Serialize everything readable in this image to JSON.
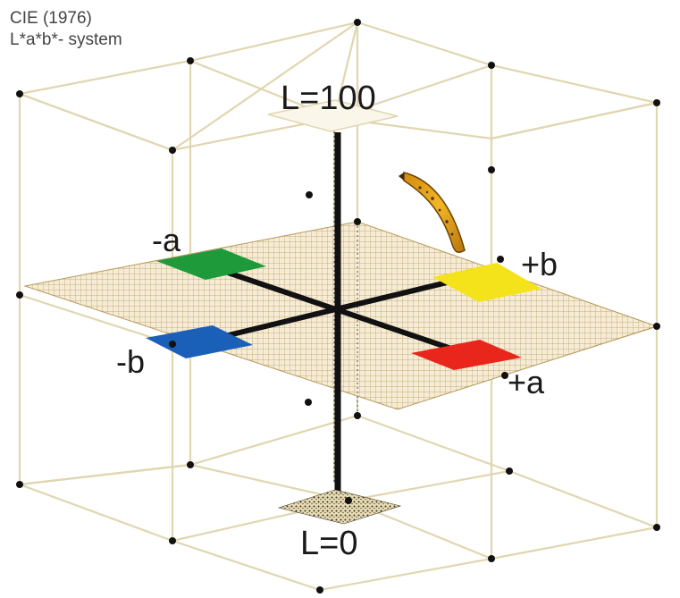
{
  "title": {
    "line1": "CIE (1976)",
    "line2": "L*a*b*- system"
  },
  "axes": {
    "lightness_top": "L=100",
    "lightness_bottom": "L=0",
    "neg_a": "-a",
    "pos_a": "+a",
    "neg_b": "-b",
    "pos_b": "+b"
  },
  "colors": {
    "neg_a": "#1e9a3a",
    "pos_a": "#e8261c",
    "neg_b": "#1a5fb8",
    "pos_b": "#f4e21a",
    "cube_edges": "#e0d6b0",
    "plane_grid": "#b59a5a"
  },
  "icons": [
    "banana-icon"
  ]
}
